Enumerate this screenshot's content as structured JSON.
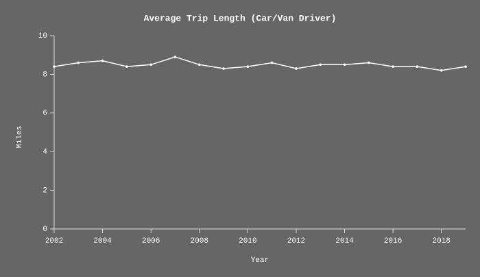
{
  "chart_data": {
    "type": "line",
    "title": "Average Trip Length (Car/Van Driver)",
    "x_label": "Year",
    "y_label": "Miles",
    "x": [
      2002,
      2003,
      2004,
      2005,
      2006,
      2007,
      2008,
      2009,
      2010,
      2011,
      2012,
      2013,
      2014,
      2015,
      2016,
      2017,
      2018,
      2019
    ],
    "series": [
      {
        "name": "Average Trip Length",
        "color": "#ffffff",
        "values": [
          8.4,
          8.6,
          8.7,
          8.4,
          8.5,
          8.9,
          8.5,
          8.3,
          8.4,
          8.6,
          8.3,
          8.5,
          8.5,
          8.6,
          8.4,
          8.4,
          8.2,
          8.4
        ]
      }
    ],
    "xlim": [
      2002,
      2019
    ],
    "xticks": [
      2002,
      2004,
      2006,
      2008,
      2010,
      2012,
      2014,
      2016,
      2018
    ],
    "ylim": [
      0,
      10
    ],
    "yticks": [
      0,
      2,
      4,
      6,
      8,
      10
    ],
    "grid": false
  }
}
